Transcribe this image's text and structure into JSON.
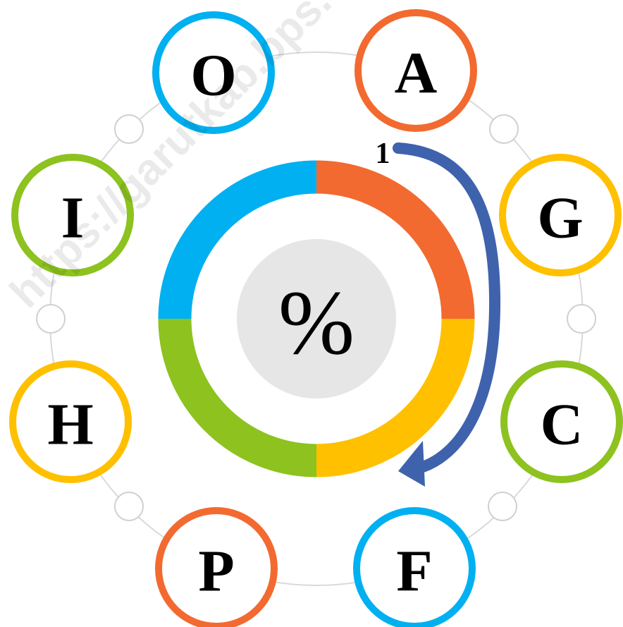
{
  "nodes": [
    {
      "label": "O"
    },
    {
      "label": "A"
    },
    {
      "label": "G"
    },
    {
      "label": "C"
    },
    {
      "label": "F"
    },
    {
      "label": "P"
    },
    {
      "label": "H"
    },
    {
      "label": "I"
    }
  ],
  "center": {
    "label": "%"
  },
  "arrow": {
    "label": "1"
  },
  "watermark": "https://garutkab.bps."
}
